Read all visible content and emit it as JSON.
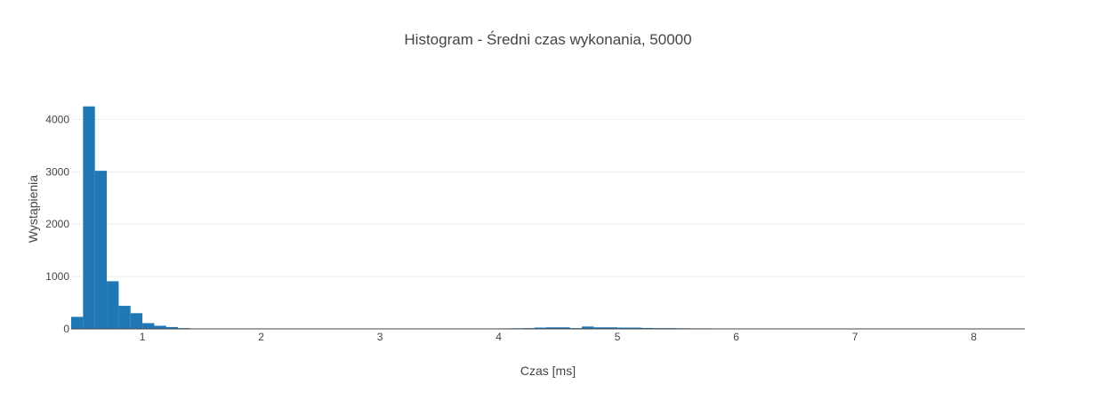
{
  "chart_data": {
    "type": "bar",
    "title": "Histogram - Średni czas wykonania, 50000",
    "xlabel": "Czas [ms]",
    "ylabel": "Wystąpienia",
    "bar_color": "#1f77b4",
    "grid": true,
    "xlim": [
      0.4,
      8.43
    ],
    "ylim": [
      0,
      4330
    ],
    "bin_width": 0.1,
    "x_ticks": [
      1,
      2,
      3,
      4,
      5,
      6,
      7,
      8
    ],
    "y_ticks": [
      0,
      1000,
      2000,
      3000,
      4000
    ],
    "x": [
      0.45,
      0.55,
      0.65,
      0.75,
      0.85,
      0.95,
      1.05,
      1.15,
      1.25,
      1.35,
      1.45,
      1.55,
      1.65,
      1.75,
      1.85,
      1.95,
      2.05,
      2.15,
      2.25,
      2.35,
      2.45,
      2.55,
      2.65,
      2.75,
      2.85,
      2.95,
      3.05,
      3.15,
      3.25,
      3.35,
      3.45,
      3.55,
      3.65,
      3.75,
      3.85,
      3.95,
      4.05,
      4.15,
      4.25,
      4.35,
      4.45,
      4.55,
      4.65,
      4.75,
      4.85,
      4.95,
      5.05,
      5.15,
      5.25,
      5.35,
      5.45,
      5.55,
      5.65,
      5.75,
      5.85,
      5.95,
      6.05,
      6.15,
      6.25,
      6.35,
      6.45,
      6.55,
      6.65,
      6.75,
      6.85,
      6.95,
      7.05,
      7.15,
      7.25,
      7.35,
      7.45,
      7.55,
      7.65,
      7.75,
      7.85,
      7.95,
      8.05,
      8.15,
      8.25,
      8.35
    ],
    "values": [
      230,
      4250,
      3020,
      910,
      440,
      300,
      110,
      60,
      35,
      15,
      8,
      5,
      4,
      3,
      2,
      2,
      2,
      2,
      2,
      2,
      2,
      2,
      2,
      2,
      2,
      2,
      2,
      2,
      2,
      2,
      2,
      3,
      3,
      4,
      5,
      7,
      10,
      12,
      15,
      25,
      30,
      30,
      15,
      45,
      30,
      30,
      25,
      25,
      18,
      15,
      15,
      12,
      10,
      10,
      5,
      4,
      3,
      3,
      2,
      2,
      2,
      2,
      2,
      2,
      2,
      2,
      2,
      2,
      2,
      2,
      2,
      2,
      2,
      2,
      2,
      2,
      2,
      2,
      2,
      2
    ]
  }
}
